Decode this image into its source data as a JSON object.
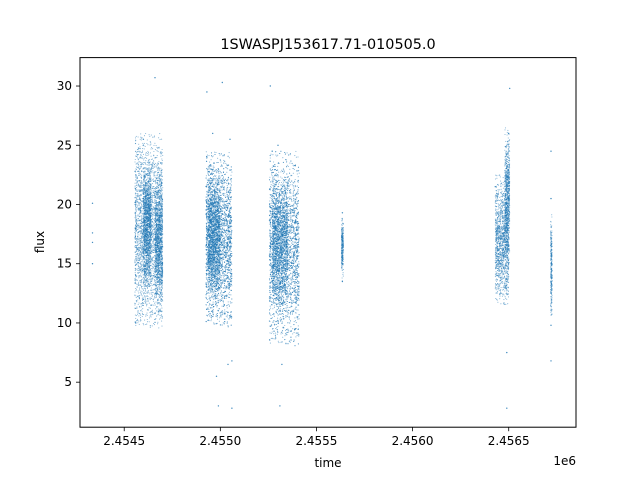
{
  "chart_data": {
    "type": "scatter",
    "title": "1SWASPJ153617.71-010505.0",
    "xlabel": "time",
    "ylabel": "flux",
    "x_offset_label": "1e6",
    "xlim": [
      2454270,
      2456850
    ],
    "ylim": [
      1.2,
      32.4
    ],
    "x_ticks": [
      2454500,
      2455000,
      2455500,
      2456000,
      2456500
    ],
    "x_tick_labels": [
      "2.4545",
      "2.4550",
      "2.4555",
      "2.4560",
      "2.4565"
    ],
    "y_ticks": [
      5,
      10,
      15,
      20,
      25,
      30
    ],
    "y_tick_labels": [
      "5",
      "10",
      "15",
      "20",
      "25",
      "30"
    ],
    "grid": false,
    "marker_color": "#1f77b4",
    "series": [
      {
        "points": [
          [
            2454335,
            20.1
          ],
          [
            2454335,
            17.6
          ],
          [
            2454335,
            16.8
          ],
          [
            2454335,
            15.0
          ],
          [
            2454560,
            22.5
          ],
          [
            2454560,
            18.0
          ],
          [
            2454560,
            14.0
          ],
          [
            2454560,
            10.0
          ],
          [
            2454600,
            25.5
          ],
          [
            2454600,
            20.5
          ],
          [
            2454600,
            15.5
          ],
          [
            2454600,
            12.0
          ],
          [
            2454640,
            23.0
          ],
          [
            2454640,
            17.0
          ],
          [
            2454640,
            11.5
          ],
          [
            2454660,
            30.7
          ],
          [
            2454690,
            23.5
          ],
          [
            2454690,
            17.5
          ],
          [
            2454690,
            11.0
          ],
          [
            2454930,
            29.5
          ],
          [
            2454930,
            24.0
          ],
          [
            2454930,
            18.0
          ],
          [
            2454930,
            12.5
          ],
          [
            2454960,
            26.0
          ],
          [
            2454960,
            20.0
          ],
          [
            2454960,
            14.5
          ],
          [
            2454960,
            11.0
          ],
          [
            2454980,
            5.5
          ],
          [
            2454990,
            3.0
          ],
          [
            2455010,
            30.3
          ],
          [
            2455020,
            22.0
          ],
          [
            2455020,
            16.5
          ],
          [
            2455020,
            11.5
          ],
          [
            2455040,
            6.5
          ],
          [
            2455050,
            25.5
          ],
          [
            2455050,
            21.0
          ],
          [
            2455050,
            15.5
          ],
          [
            2455050,
            10.5
          ],
          [
            2455060,
            2.8
          ],
          [
            2455060,
            6.8
          ],
          [
            2455260,
            30.0
          ],
          [
            2455270,
            24.5
          ],
          [
            2455270,
            19.0
          ],
          [
            2455270,
            13.5
          ],
          [
            2455300,
            25.0
          ],
          [
            2455300,
            17.5
          ],
          [
            2455300,
            12.0
          ],
          [
            2455310,
            3.0
          ],
          [
            2455320,
            6.5
          ],
          [
            2455340,
            21.0
          ],
          [
            2455340,
            15.0
          ],
          [
            2455340,
            11.0
          ],
          [
            2455390,
            18.5
          ],
          [
            2455390,
            13.0
          ],
          [
            2455390,
            9.5
          ],
          [
            2455400,
            10.5
          ],
          [
            2455635,
            19.3
          ],
          [
            2455635,
            17.0
          ],
          [
            2455635,
            15.5
          ],
          [
            2455635,
            13.5
          ],
          [
            2456430,
            21.5
          ],
          [
            2456440,
            17.5
          ],
          [
            2456440,
            14.0
          ],
          [
            2456460,
            19.5
          ],
          [
            2456460,
            15.0
          ],
          [
            2456460,
            12.5
          ],
          [
            2456490,
            7.5
          ],
          [
            2456490,
            2.8
          ],
          [
            2456500,
            26.0
          ],
          [
            2456500,
            20.5
          ],
          [
            2456500,
            16.5
          ],
          [
            2456505,
            29.8
          ],
          [
            2456720,
            24.5
          ],
          [
            2456720,
            20.5
          ],
          [
            2456720,
            17.5
          ],
          [
            2456720,
            12.5
          ],
          [
            2456720,
            9.8
          ],
          [
            2456720,
            6.8
          ]
        ],
        "bands": [
          {
            "t0": 2454555,
            "t1": 2454700,
            "y_lo": 10.5,
            "y_hi": 25.0,
            "density": 2500
          },
          {
            "t0": 2454600,
            "t1": 2454640,
            "y_lo": 14.0,
            "y_hi": 23.0,
            "density": 1200
          },
          {
            "t0": 2454660,
            "t1": 2454700,
            "y_lo": 12.0,
            "y_hi": 22.0,
            "density": 1000
          },
          {
            "t0": 2454925,
            "t1": 2455060,
            "y_lo": 10.5,
            "y_hi": 23.5,
            "density": 3000
          },
          {
            "t0": 2454935,
            "t1": 2455000,
            "y_lo": 13.0,
            "y_hi": 22.0,
            "density": 1500
          },
          {
            "t0": 2455255,
            "t1": 2455410,
            "y_lo": 9.0,
            "y_hi": 23.5,
            "density": 3000
          },
          {
            "t0": 2455270,
            "t1": 2455350,
            "y_lo": 12.5,
            "y_hi": 21.5,
            "density": 1500
          },
          {
            "t0": 2455630,
            "t1": 2455640,
            "y_lo": 14.5,
            "y_hi": 18.5,
            "density": 250
          },
          {
            "t0": 2456430,
            "t1": 2456500,
            "y_lo": 12.5,
            "y_hi": 21.5,
            "density": 1300
          },
          {
            "t0": 2456480,
            "t1": 2456505,
            "y_lo": 16.0,
            "y_hi": 25.5,
            "density": 700
          },
          {
            "t0": 2456718,
            "t1": 2456726,
            "y_lo": 11.0,
            "y_hi": 18.5,
            "density": 250
          }
        ]
      }
    ]
  }
}
